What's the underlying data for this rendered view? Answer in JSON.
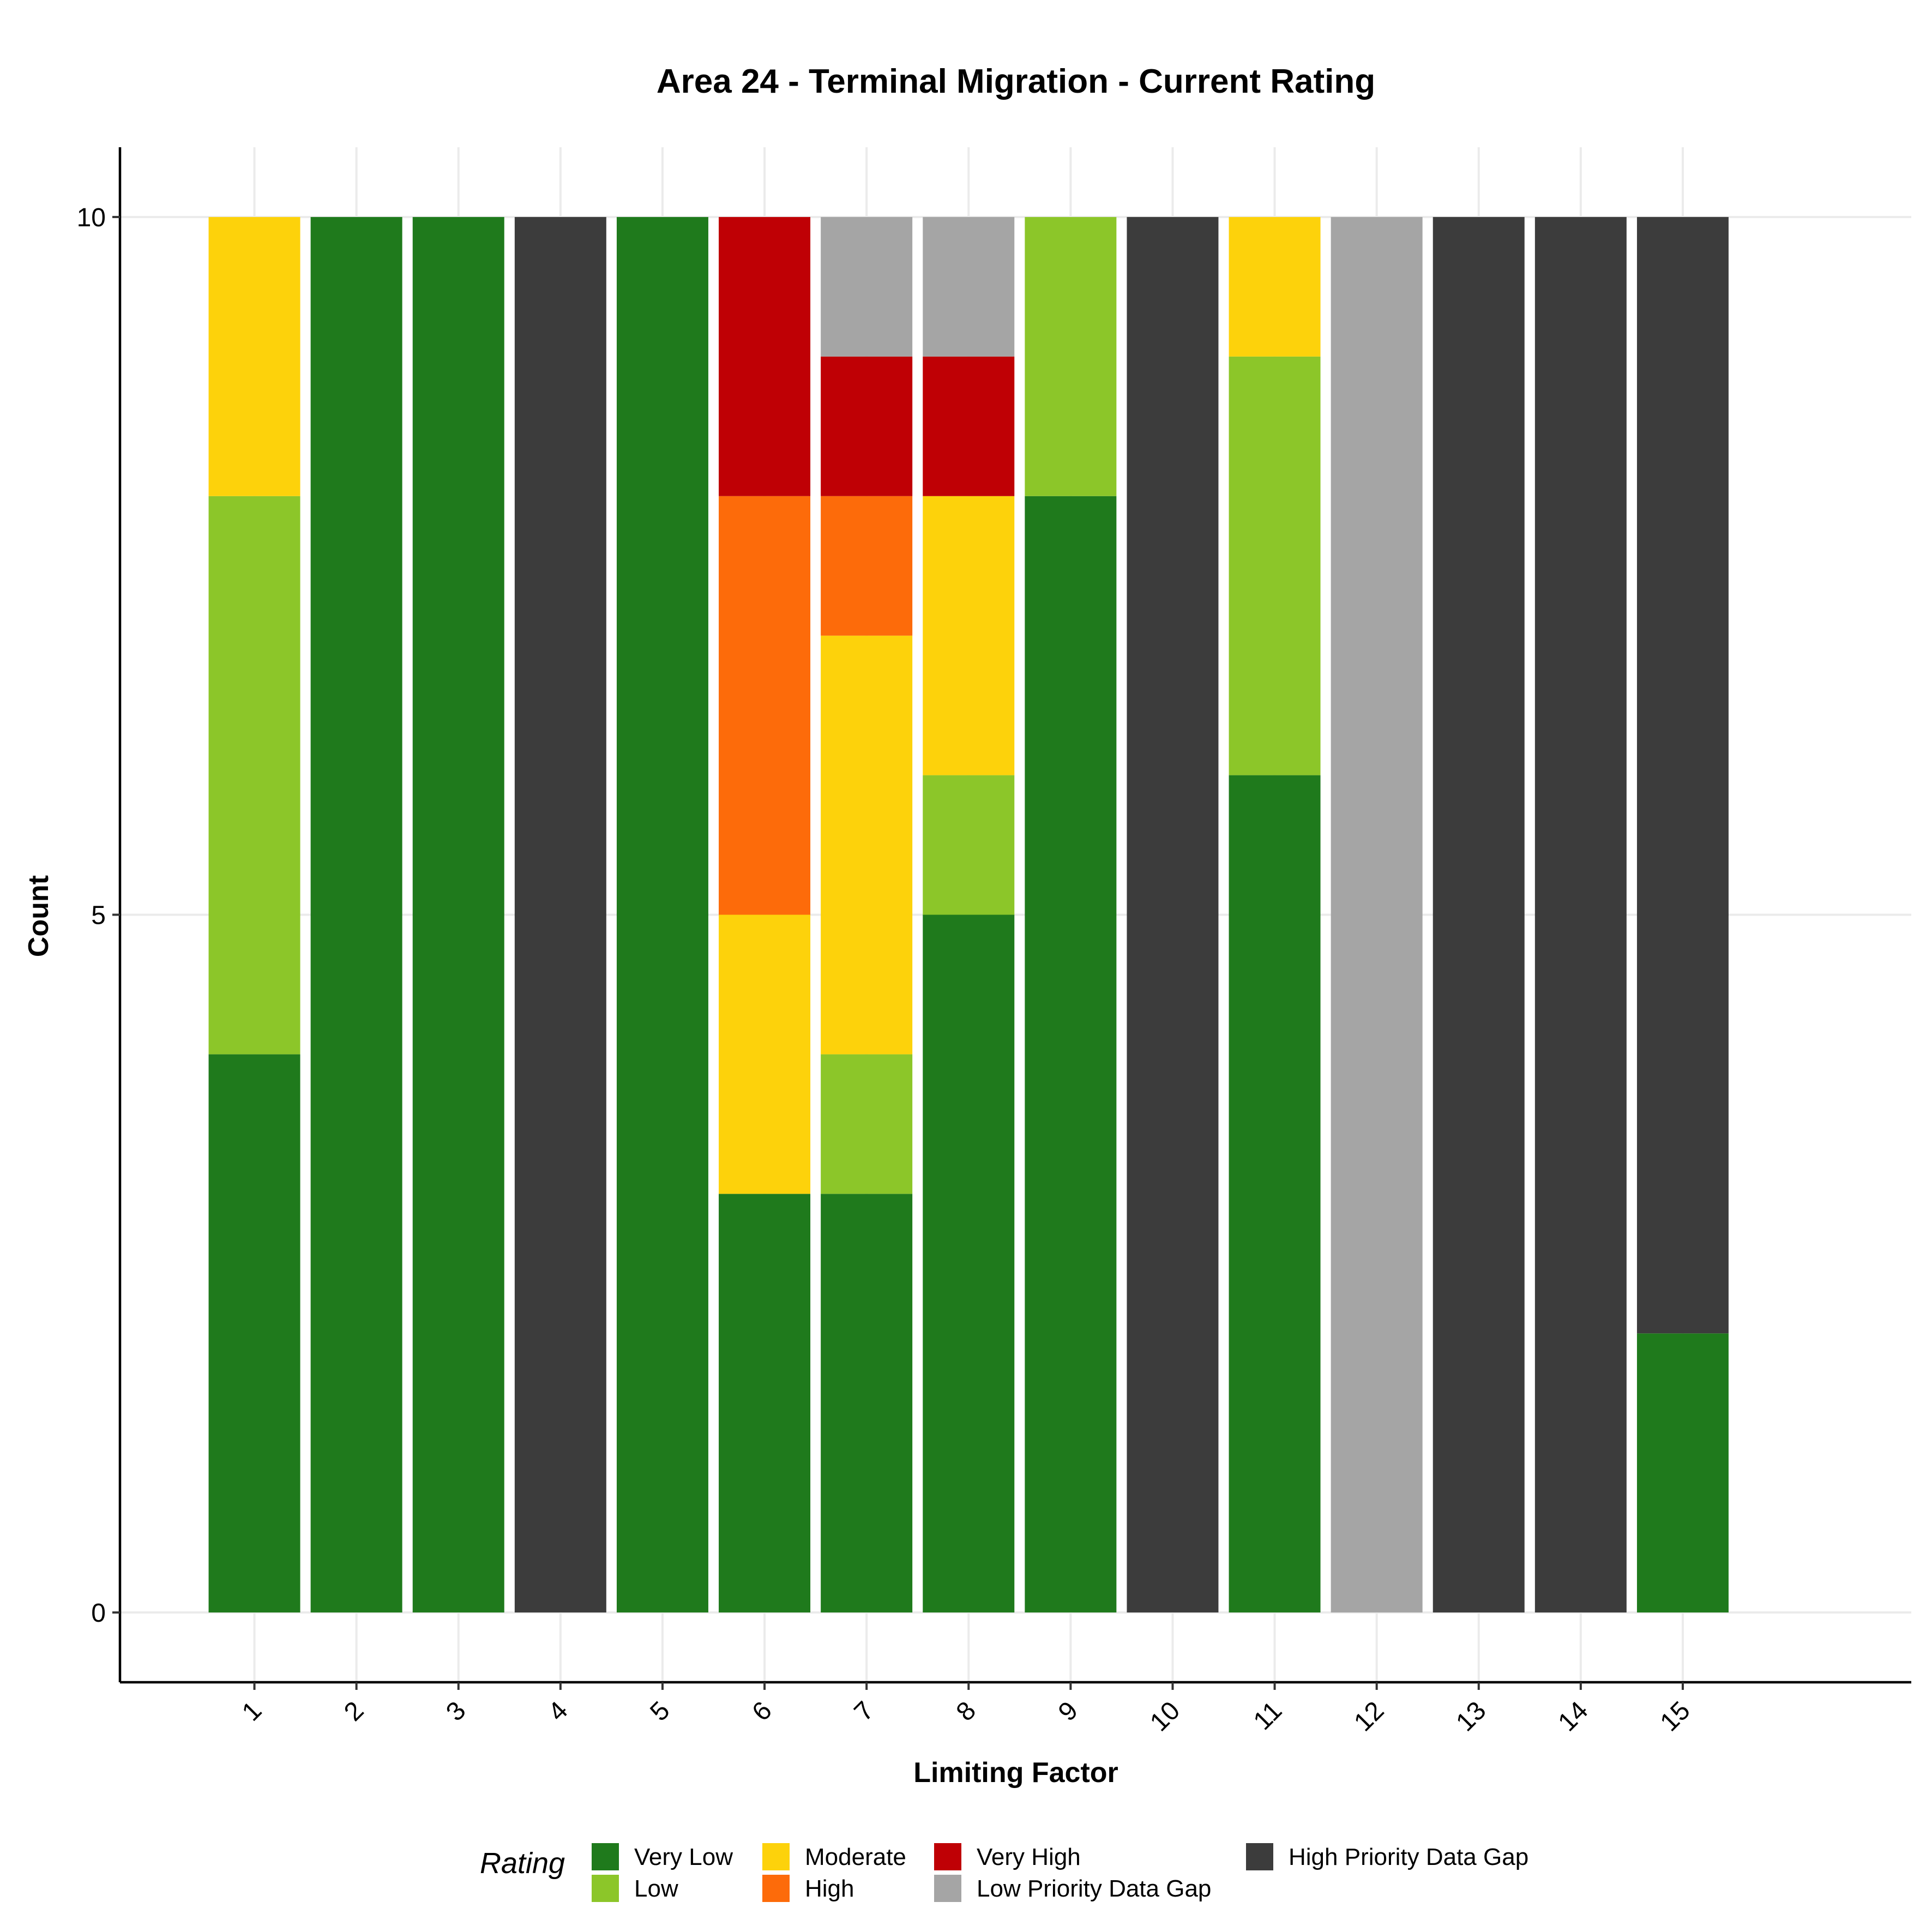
{
  "chart_data": {
    "type": "bar",
    "stacked": true,
    "title": "Area 24 - Terminal Migration - Current Rating",
    "xlabel": "Limiting Factor",
    "ylabel": "Count",
    "categories": [
      "1",
      "2",
      "3",
      "4",
      "5",
      "6",
      "7",
      "8",
      "9",
      "10",
      "11",
      "12",
      "13",
      "14",
      "15"
    ],
    "ylim": [
      -0.5,
      10.5
    ],
    "yticks": [
      0,
      5,
      10
    ],
    "grid": true,
    "legend": {
      "title": "Rating",
      "position": "bottom"
    },
    "series": [
      {
        "name": "Very Low",
        "color": "#1f7a1c",
        "values": [
          4,
          10,
          10,
          0,
          10,
          3,
          3,
          5,
          8,
          0,
          6,
          0,
          0,
          0,
          2
        ]
      },
      {
        "name": "Low",
        "color": "#8cc629",
        "values": [
          4,
          0,
          0,
          0,
          0,
          0,
          1,
          1,
          2,
          0,
          3,
          0,
          0,
          0,
          0
        ]
      },
      {
        "name": "Moderate",
        "color": "#fdd20b",
        "values": [
          2,
          0,
          0,
          0,
          0,
          2,
          3,
          2,
          0,
          0,
          1,
          0,
          0,
          0,
          0
        ]
      },
      {
        "name": "High",
        "color": "#fd6b0a",
        "values": [
          0,
          0,
          0,
          0,
          0,
          3,
          1,
          0,
          0,
          0,
          0,
          0,
          0,
          0,
          0
        ]
      },
      {
        "name": "Very High",
        "color": "#bf0005",
        "values": [
          0,
          0,
          0,
          0,
          0,
          2,
          1,
          1,
          0,
          0,
          0,
          0,
          0,
          0,
          0
        ]
      },
      {
        "name": "Low Priority Data Gap",
        "color": "#a5a5a5",
        "values": [
          0,
          0,
          0,
          0,
          0,
          0,
          1,
          1,
          0,
          0,
          0,
          10,
          0,
          0,
          0
        ]
      },
      {
        "name": "High Priority Data Gap",
        "color": "#3c3c3c",
        "values": [
          0,
          0,
          0,
          10,
          0,
          0,
          0,
          0,
          0,
          10,
          0,
          0,
          10,
          10,
          8
        ]
      }
    ]
  }
}
